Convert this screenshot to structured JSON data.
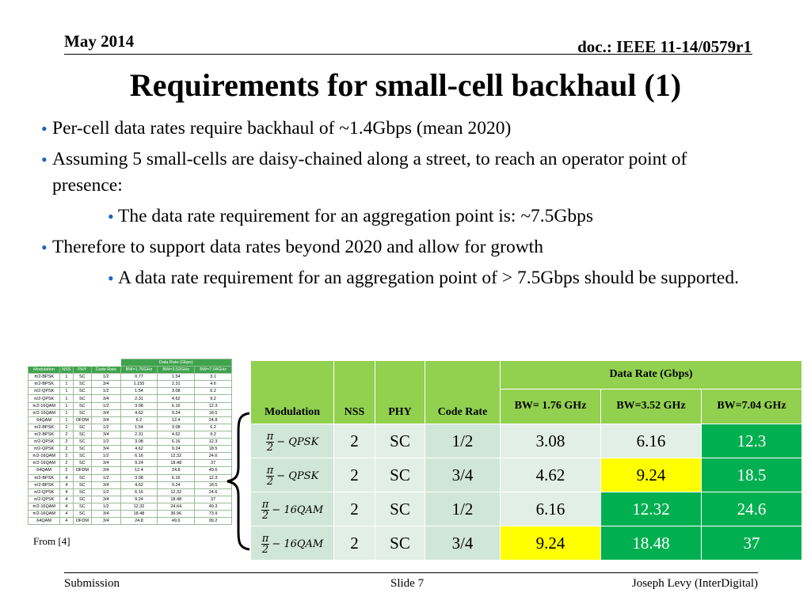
{
  "header": {
    "date": "May 2014",
    "doc": "doc.: IEEE 11-14/0579r1"
  },
  "title": "Requirements for small-cell backhaul (1)",
  "bullets": {
    "b1": "Per-cell data rates require backhaul of ~1.4Gbps (mean 2020)",
    "b2": "Assuming 5 small-cells are daisy-chained along a street, to reach an operator point of presence:",
    "b2_sub": "The data rate requirement for an aggregation point is: ~7.5Gbps",
    "b3": "Therefore to support data rates beyond 2020 and allow for growth",
    "b3_sub": "A data rate requirement for an aggregation point of  > 7.5Gbps should be supported."
  },
  "small_table": {
    "group_header": "Data Rate (Gbps)",
    "headers": [
      "Modulation",
      "NSS",
      "PHY",
      "Code Rate",
      "BW=1.76GHz",
      "BW=3.52GHz",
      "BW=7.04GHz"
    ],
    "rows": [
      [
        "π/2-BPSK",
        "1",
        "SC",
        "1/2",
        "0.77",
        "1.54",
        "3.1"
      ],
      [
        "π/2-BPSK",
        "1",
        "SC",
        "3/4",
        "1.155",
        "2.31",
        "4.6"
      ],
      [
        "π/2-QPSK",
        "1",
        "SC",
        "1/2",
        "1.54",
        "3.08",
        "6.2"
      ],
      [
        "π/2-QPSK",
        "1",
        "SC",
        "3/4",
        "2.31",
        "4.62",
        "9.2"
      ],
      [
        "π/2-16QAM",
        "1",
        "SC",
        "1/2",
        "3.08",
        "6.16",
        "12.3"
      ],
      [
        "π/2-16QAM",
        "1",
        "SC",
        "3/4",
        "4.62",
        "9.24",
        "18.5"
      ],
      [
        "64QAM",
        "1",
        "OFDM",
        "3/4",
        "6.2",
        "12.4",
        "24.8"
      ],
      [
        "π/2-BPSK",
        "2",
        "SC",
        "1/2",
        "1.54",
        "3.08",
        "6.2"
      ],
      [
        "π/2-BPSK",
        "2",
        "SC",
        "3/4",
        "2.31",
        "4.62",
        "9.2"
      ],
      [
        "π/2-QPSK",
        "2",
        "SC",
        "1/2",
        "3.08",
        "6.16",
        "12.3"
      ],
      [
        "π/2-QPSK",
        "2",
        "SC",
        "3/4",
        "4.62",
        "9.24",
        "18.5"
      ],
      [
        "π/2-16QAM",
        "2",
        "SC",
        "1/2",
        "6.16",
        "12.32",
        "24.6"
      ],
      [
        "π/2-16QAM",
        "2",
        "SC",
        "3/4",
        "9.24",
        "18.48",
        "37"
      ],
      [
        "64QAM",
        "2",
        "OFDM",
        "3/4",
        "12.4",
        "24.8",
        "49.6"
      ],
      [
        "π/2-BPSK",
        "4",
        "SC",
        "1/2",
        "3.08",
        "6.16",
        "12.3"
      ],
      [
        "π/2-BPSK",
        "4",
        "SC",
        "3/4",
        "4.62",
        "9.24",
        "18.5"
      ],
      [
        "π/2-QPSK",
        "4",
        "SC",
        "1/2",
        "6.16",
        "12.32",
        "24.6"
      ],
      [
        "π/2-QPSK",
        "4",
        "SC",
        "3/4",
        "9.24",
        "18.48",
        "37"
      ],
      [
        "π/2-16QAM",
        "4",
        "SC",
        "1/2",
        "12.32",
        "24.64",
        "49.3"
      ],
      [
        "π/2-16QAM",
        "4",
        "SC",
        "3/4",
        "18.48",
        "36.96",
        "73.9"
      ],
      [
        "64QAM",
        "4",
        "OFDM",
        "3/4",
        "24.8",
        "49.6",
        "99.2"
      ]
    ],
    "source": "From [4]"
  },
  "big_table": {
    "group_header": "Data Rate (Gbps)",
    "headers": [
      "Modulation",
      "NSS",
      "PHY",
      "Code Rate",
      "BW= 1.76 GHz",
      "BW=3.52 GHz",
      "BW=7.04 GHz"
    ],
    "rows": [
      {
        "pi": "π",
        "den": "2",
        "mod": "− QPSK",
        "nss": "2",
        "phy": "SC",
        "rate": "1/2",
        "v1": "3.08",
        "v2": "6.16",
        "v3": "12.3"
      },
      {
        "pi": "π",
        "den": "2",
        "mod": "− QPSK",
        "nss": "2",
        "phy": "SC",
        "rate": "3/4",
        "v1": "4.62",
        "v2": "9.24",
        "v3": "18.5"
      },
      {
        "pi": "π",
        "den": "2",
        "mod": "− 16QAM",
        "nss": "2",
        "phy": "SC",
        "rate": "1/2",
        "v1": "6.16",
        "v2": "12.32",
        "v3": "24.6"
      },
      {
        "pi": "π",
        "den": "2",
        "mod": "− 16QAM",
        "nss": "2",
        "phy": "SC",
        "rate": "3/4",
        "v1": "9.24",
        "v2": "18.48",
        "v3": "37"
      }
    ],
    "colors": {
      "header": "#92d050",
      "yellow": "#ffff00",
      "green": "#00b050",
      "cell": "#e2efe7"
    }
  },
  "footer": {
    "left": "Submission",
    "mid": "Slide 7",
    "right": "Joseph Levy (InterDigital)"
  }
}
